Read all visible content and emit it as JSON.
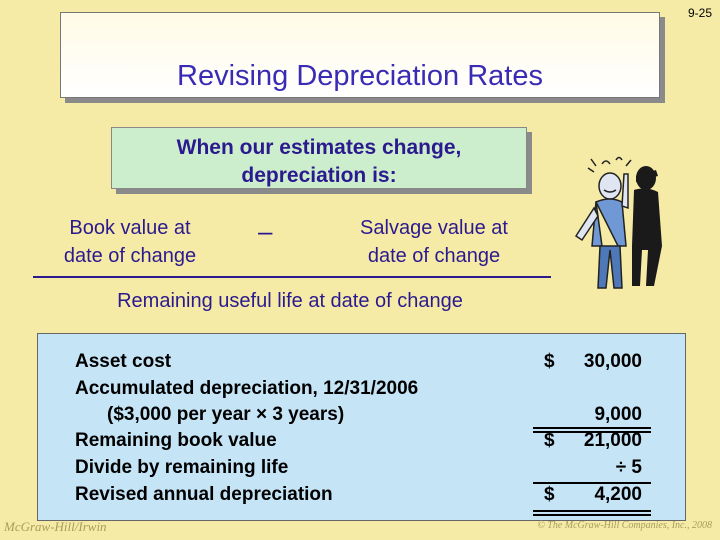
{
  "slide_number": "9-25",
  "title": "Revising Depreciation Rates",
  "intro": "When our estimates change,\ndepreciation is:",
  "formula": {
    "numerator_left": "Book value at\ndate of change",
    "operator": "–",
    "numerator_right": "Salvage value at\ndate of change",
    "denominator": "Remaining useful life at date of change"
  },
  "calculation": {
    "rows": [
      {
        "label": "Asset cost",
        "currency": "$",
        "value": "30,000"
      },
      {
        "label": "Accumulated depreciation, 12/31/2006",
        "currency": "",
        "value": ""
      },
      {
        "label": "($3,000 per year × 3 years)",
        "currency": "",
        "value": "9,000"
      },
      {
        "label": "Remaining book value",
        "currency": "$",
        "value": "21,000"
      },
      {
        "label": "Divide by remaining life",
        "currency": "",
        "value": "÷ 5"
      },
      {
        "label": "Revised annual depreciation",
        "currency": "$",
        "value": "4,200"
      }
    ]
  },
  "footer": {
    "publisher": "McGraw-Hill/Irwin",
    "copyright": "© The McGraw-Hill Companies, Inc., 2008"
  },
  "illustration_icon": "worried-man-with-shadow-icon"
}
